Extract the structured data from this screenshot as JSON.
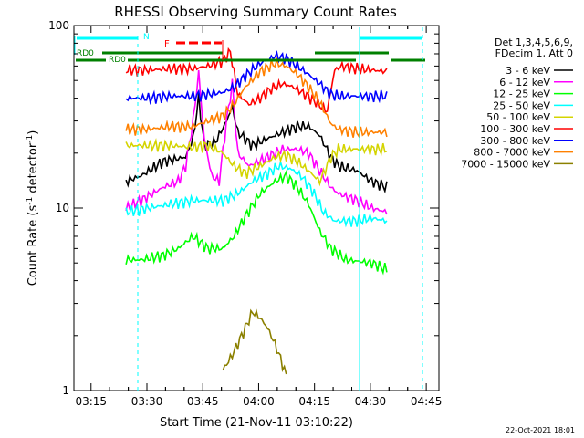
{
  "chart_data": {
    "type": "line",
    "title": "RHESSI Observing Summary Count Rates",
    "xlabel": "Start Time (21-Nov-11 03:10:22)",
    "ylabel_main": "Count Rate (s",
    "ylabel_sup1": "-1",
    "ylabel_mid": " detector",
    "ylabel_sup2": "-1",
    "ylabel_end": ")",
    "yscale": "log",
    "ylim": [
      1,
      100
    ],
    "xlim_minutes": [
      0,
      98
    ],
    "x_ticks": [
      {
        "minute": 4.6,
        "label": "03:15"
      },
      {
        "minute": 19.6,
        "label": "03:30"
      },
      {
        "minute": 34.6,
        "label": "03:45"
      },
      {
        "minute": 49.6,
        "label": "04:00"
      },
      {
        "minute": 64.6,
        "label": "04:15"
      },
      {
        "minute": 79.6,
        "label": "04:30"
      },
      {
        "minute": 94.6,
        "label": "04:45"
      }
    ],
    "y_ticks": [
      {
        "value": 1,
        "label": "1"
      },
      {
        "value": 10,
        "label": "10"
      },
      {
        "value": 100,
        "label": "100"
      }
    ],
    "legend_header": [
      "Det 1,3,4,5,6,9,",
      "FDecim 1, Att 0"
    ],
    "series": [
      {
        "name": "3 - 6 keV",
        "color": "#000000",
        "points": [
          [
            14,
            14
          ],
          [
            18,
            15
          ],
          [
            24,
            18
          ],
          [
            30,
            19
          ],
          [
            32,
            24
          ],
          [
            33.5,
            40
          ],
          [
            35,
            22
          ],
          [
            38,
            23
          ],
          [
            41,
            30
          ],
          [
            42.5,
            36
          ],
          [
            44,
            26
          ],
          [
            48,
            22
          ],
          [
            52,
            24
          ],
          [
            56,
            26
          ],
          [
            60,
            28
          ],
          [
            63,
            28
          ],
          [
            66,
            25
          ],
          [
            69,
            19
          ],
          [
            71,
            17
          ],
          [
            76,
            16
          ],
          [
            80,
            14
          ],
          [
            84,
            13
          ]
        ]
      },
      {
        "name": "6 - 12 keV",
        "color": "#ff00ff",
        "points": [
          [
            14,
            10
          ],
          [
            18,
            11
          ],
          [
            24,
            13
          ],
          [
            28,
            14
          ],
          [
            30,
            17
          ],
          [
            32,
            30
          ],
          [
            33.5,
            55
          ],
          [
            35,
            24
          ],
          [
            37,
            15
          ],
          [
            39,
            14
          ],
          [
            41,
            30
          ],
          [
            42.5,
            48
          ],
          [
            44,
            20
          ],
          [
            47,
            17
          ],
          [
            52,
            19
          ],
          [
            56,
            21
          ],
          [
            60,
            21
          ],
          [
            63,
            20
          ],
          [
            66,
            16
          ],
          [
            69,
            13
          ],
          [
            71,
            12
          ],
          [
            76,
            11
          ],
          [
            80,
            10
          ],
          [
            84,
            9.5
          ]
        ]
      },
      {
        "name": "12 - 25 keV",
        "color": "#00ff00",
        "points": [
          [
            14,
            5.2
          ],
          [
            18,
            5.2
          ],
          [
            24,
            5.5
          ],
          [
            28,
            6
          ],
          [
            32,
            7
          ],
          [
            36,
            6
          ],
          [
            40,
            6
          ],
          [
            43,
            7
          ],
          [
            46,
            9
          ],
          [
            50,
            12
          ],
          [
            54,
            14
          ],
          [
            57,
            15
          ],
          [
            60,
            13
          ],
          [
            63,
            10.5
          ],
          [
            66,
            7.5
          ],
          [
            69,
            6
          ],
          [
            73,
            5.2
          ],
          [
            80,
            5
          ],
          [
            84,
            4.6
          ]
        ]
      },
      {
        "name": "25 - 50 keV",
        "color": "#00ffff",
        "points": [
          [
            14,
            9.5
          ],
          [
            20,
            10
          ],
          [
            26,
            10.5
          ],
          [
            32,
            11
          ],
          [
            36,
            11
          ],
          [
            40,
            11
          ],
          [
            44,
            12
          ],
          [
            48,
            14
          ],
          [
            52,
            15.5
          ],
          [
            55,
            17
          ],
          [
            58,
            16.5
          ],
          [
            61,
            15
          ],
          [
            64,
            12.5
          ],
          [
            67,
            9.5
          ],
          [
            70,
            8.5
          ],
          [
            76,
            8.5
          ],
          [
            80,
            8.8
          ],
          [
            84,
            8.5
          ]
        ]
      },
      {
        "name": "50 - 100 keV",
        "color": "#d4d400",
        "points": [
          [
            14,
            22
          ],
          [
            20,
            22
          ],
          [
            26,
            22
          ],
          [
            32,
            21.5
          ],
          [
            36,
            22
          ],
          [
            40,
            20
          ],
          [
            43,
            17
          ],
          [
            46,
            15.5
          ],
          [
            50,
            17
          ],
          [
            54,
            19
          ],
          [
            57,
            19.5
          ],
          [
            60,
            18
          ],
          [
            63,
            16
          ],
          [
            66,
            14
          ],
          [
            69,
            19
          ],
          [
            71,
            21
          ],
          [
            76,
            21
          ],
          [
            80,
            21
          ],
          [
            84,
            21
          ]
        ]
      },
      {
        "name": "100 - 300 keV",
        "color": "#ff0000",
        "points": [
          [
            14,
            57
          ],
          [
            20,
            57
          ],
          [
            26,
            58
          ],
          [
            32,
            58
          ],
          [
            36,
            60
          ],
          [
            40,
            64
          ],
          [
            42,
            72
          ],
          [
            44,
            42
          ],
          [
            47,
            37
          ],
          [
            50,
            40
          ],
          [
            53,
            45
          ],
          [
            56,
            48
          ],
          [
            59,
            46
          ],
          [
            62,
            42
          ],
          [
            65,
            38
          ],
          [
            68,
            34
          ],
          [
            70,
            57
          ],
          [
            72,
            60
          ],
          [
            76,
            58
          ],
          [
            80,
            57
          ],
          [
            84,
            56
          ]
        ]
      },
      {
        "name": "300 - 800 keV",
        "color": "#0000ff",
        "points": [
          [
            14,
            40
          ],
          [
            20,
            40
          ],
          [
            26,
            41
          ],
          [
            32,
            41
          ],
          [
            36,
            42
          ],
          [
            40,
            43
          ],
          [
            43,
            46
          ],
          [
            46,
            53
          ],
          [
            50,
            62
          ],
          [
            54,
            68
          ],
          [
            57,
            66
          ],
          [
            60,
            60
          ],
          [
            63,
            54
          ],
          [
            66,
            48
          ],
          [
            69,
            42
          ],
          [
            71,
            41
          ],
          [
            76,
            41
          ],
          [
            80,
            41
          ],
          [
            84,
            41
          ]
        ]
      },
      {
        "name": "800 - 7000 keV",
        "color": "#ff8000",
        "points": [
          [
            14,
            27
          ],
          [
            20,
            27
          ],
          [
            26,
            28
          ],
          [
            32,
            28
          ],
          [
            36,
            30
          ],
          [
            40,
            32
          ],
          [
            43,
            37
          ],
          [
            46,
            46
          ],
          [
            50,
            56
          ],
          [
            54,
            62
          ],
          [
            57,
            60
          ],
          [
            60,
            54
          ],
          [
            63,
            46
          ],
          [
            66,
            38
          ],
          [
            69,
            29
          ],
          [
            71,
            27
          ],
          [
            76,
            26
          ],
          [
            80,
            26
          ],
          [
            84,
            26
          ]
        ]
      },
      {
        "name": "7000 - 15000 keV",
        "color": "#8b8000",
        "points": [
          [
            40,
            1.3
          ],
          [
            42,
            1.5
          ],
          [
            44,
            1.8
          ],
          [
            46,
            2.2
          ],
          [
            48,
            2.7
          ],
          [
            50,
            2.5
          ],
          [
            52,
            2.2
          ],
          [
            54,
            1.8
          ],
          [
            56,
            1.4
          ],
          [
            57,
            1.2
          ]
        ]
      }
    ]
  },
  "annotations": {
    "n_label": "N",
    "f_label": "F",
    "rd_label_upper": "RD0",
    "rd_label_lower": "RD0"
  },
  "footer_date": "22-Oct-2021 18:01"
}
